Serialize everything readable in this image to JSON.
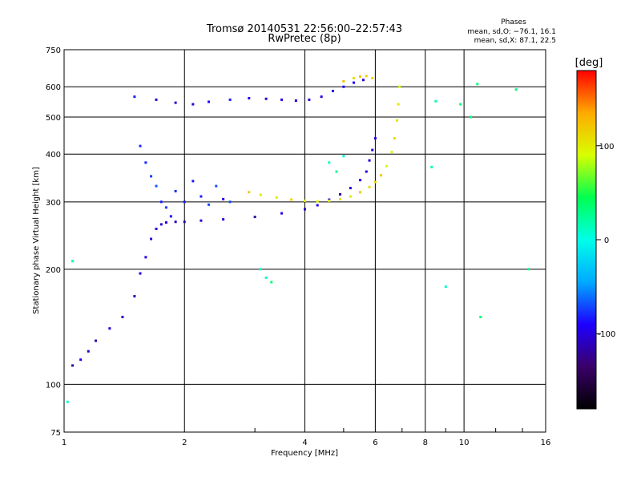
{
  "chart_data": {
    "type": "scatter",
    "title": "Tromsø 20140531 22:56:00–22:57:43",
    "subtitle": "RwPretec (8p)",
    "xlabel": "Frequency [MHz]",
    "ylabel": "Stationary phase Virtual Height [km]",
    "x_scale": "log",
    "y_scale": "log",
    "xlim": [
      1,
      16
    ],
    "ylim": [
      75,
      750
    ],
    "x_ticks": [
      1,
      2,
      4,
      6,
      8,
      10,
      16
    ],
    "x_tick_labels": [
      "1",
      "2",
      "4",
      "6",
      "8",
      "10",
      "16"
    ],
    "y_ticks": [
      75,
      100,
      200,
      300,
      400,
      500,
      600,
      750
    ],
    "y_tick_labels": [
      "75",
      "100",
      "200",
      "300",
      "400",
      "500",
      "600",
      "750"
    ],
    "grid": true,
    "annotation": {
      "heading": "Phases",
      "line1": "mean, sd,O: −76.1, 16.1",
      "line2": "mean, sd,X:  87.1, 22.5"
    },
    "colorbar": {
      "label": "[deg]",
      "range": [
        -180,
        180
      ],
      "ticks": [
        100,
        0,
        -100
      ],
      "tick_labels": [
        "100",
        "0",
        "-100"
      ],
      "colormap": [
        "#000000",
        "#3a006a",
        "#1d00ff",
        "#00aaff",
        "#00ffe8",
        "#00ff50",
        "#d8ff00",
        "#ffaa00",
        "#ff0000"
      ]
    },
    "series": [
      {
        "trace": "o-mode-lower",
        "phase_deg": -105,
        "x": [
          1.05,
          1.1,
          1.15,
          1.2,
          1.3,
          1.4,
          1.5,
          1.55,
          1.6,
          1.65,
          1.7,
          1.75,
          1.8,
          1.9,
          2.0,
          2.2,
          2.5,
          3.0,
          3.5,
          4.0,
          4.3,
          4.6,
          4.9,
          5.2,
          5.5,
          5.7,
          5.8,
          5.9,
          6.0
        ],
        "y": [
          112,
          116,
          122,
          130,
          140,
          150,
          170,
          195,
          215,
          240,
          255,
          262,
          265,
          266,
          266,
          268,
          270,
          274,
          280,
          287,
          294,
          304,
          314,
          326,
          342,
          360,
          385,
          410,
          440
        ]
      },
      {
        "trace": "x-mode-lower",
        "phase_deg": 105,
        "x": [
          2.9,
          3.1,
          3.4,
          3.7,
          4.0,
          4.3,
          4.6,
          4.9,
          5.2,
          5.5,
          5.8,
          6.0,
          6.2,
          6.4,
          6.6,
          6.7,
          6.8,
          6.85,
          6.9
        ],
        "y": [
          318,
          313,
          308,
          304,
          302,
          301,
          302,
          305,
          310,
          318,
          328,
          338,
          352,
          372,
          405,
          440,
          490,
          540,
          600
        ]
      },
      {
        "trace": "o-mode-f2-upper",
        "phase_deg": -95,
        "x": [
          1.5,
          1.7,
          1.9,
          2.1,
          2.3,
          2.6,
          2.9,
          3.2,
          3.5,
          3.8,
          4.1,
          4.4,
          4.7,
          5.0,
          5.3,
          5.6
        ],
        "y": [
          565,
          555,
          545,
          540,
          548,
          555,
          560,
          558,
          555,
          552,
          555,
          565,
          585,
          600,
          615,
          625
        ]
      },
      {
        "trace": "x-mode-upper",
        "phase_deg": 110,
        "x": [
          5.0,
          5.3,
          5.5,
          5.7,
          5.9
        ],
        "y": [
          620,
          632,
          638,
          640,
          632
        ]
      },
      {
        "trace": "spread-cluster",
        "phase_deg": -80,
        "x": [
          1.55,
          1.6,
          1.65,
          1.7,
          1.75,
          1.8,
          1.85,
          1.9,
          2.0,
          2.1,
          2.2,
          2.3,
          2.4,
          2.5,
          2.6
        ],
        "y": [
          420,
          380,
          350,
          330,
          300,
          290,
          275,
          320,
          300,
          340,
          310,
          295,
          330,
          305,
          300
        ]
      },
      {
        "trace": "scattered-echoes",
        "phase_deg": 20,
        "x": [
          1.02,
          1.05,
          3.1,
          3.2,
          3.3,
          4.6,
          4.8,
          5.0,
          8.3,
          8.5,
          9.0,
          9.8,
          10.4,
          10.8,
          11.0,
          13.5,
          14.5
        ],
        "y": [
          90,
          210,
          200,
          190,
          185,
          380,
          360,
          395,
          370,
          550,
          180,
          540,
          500,
          610,
          150,
          590,
          200
        ]
      }
    ]
  }
}
